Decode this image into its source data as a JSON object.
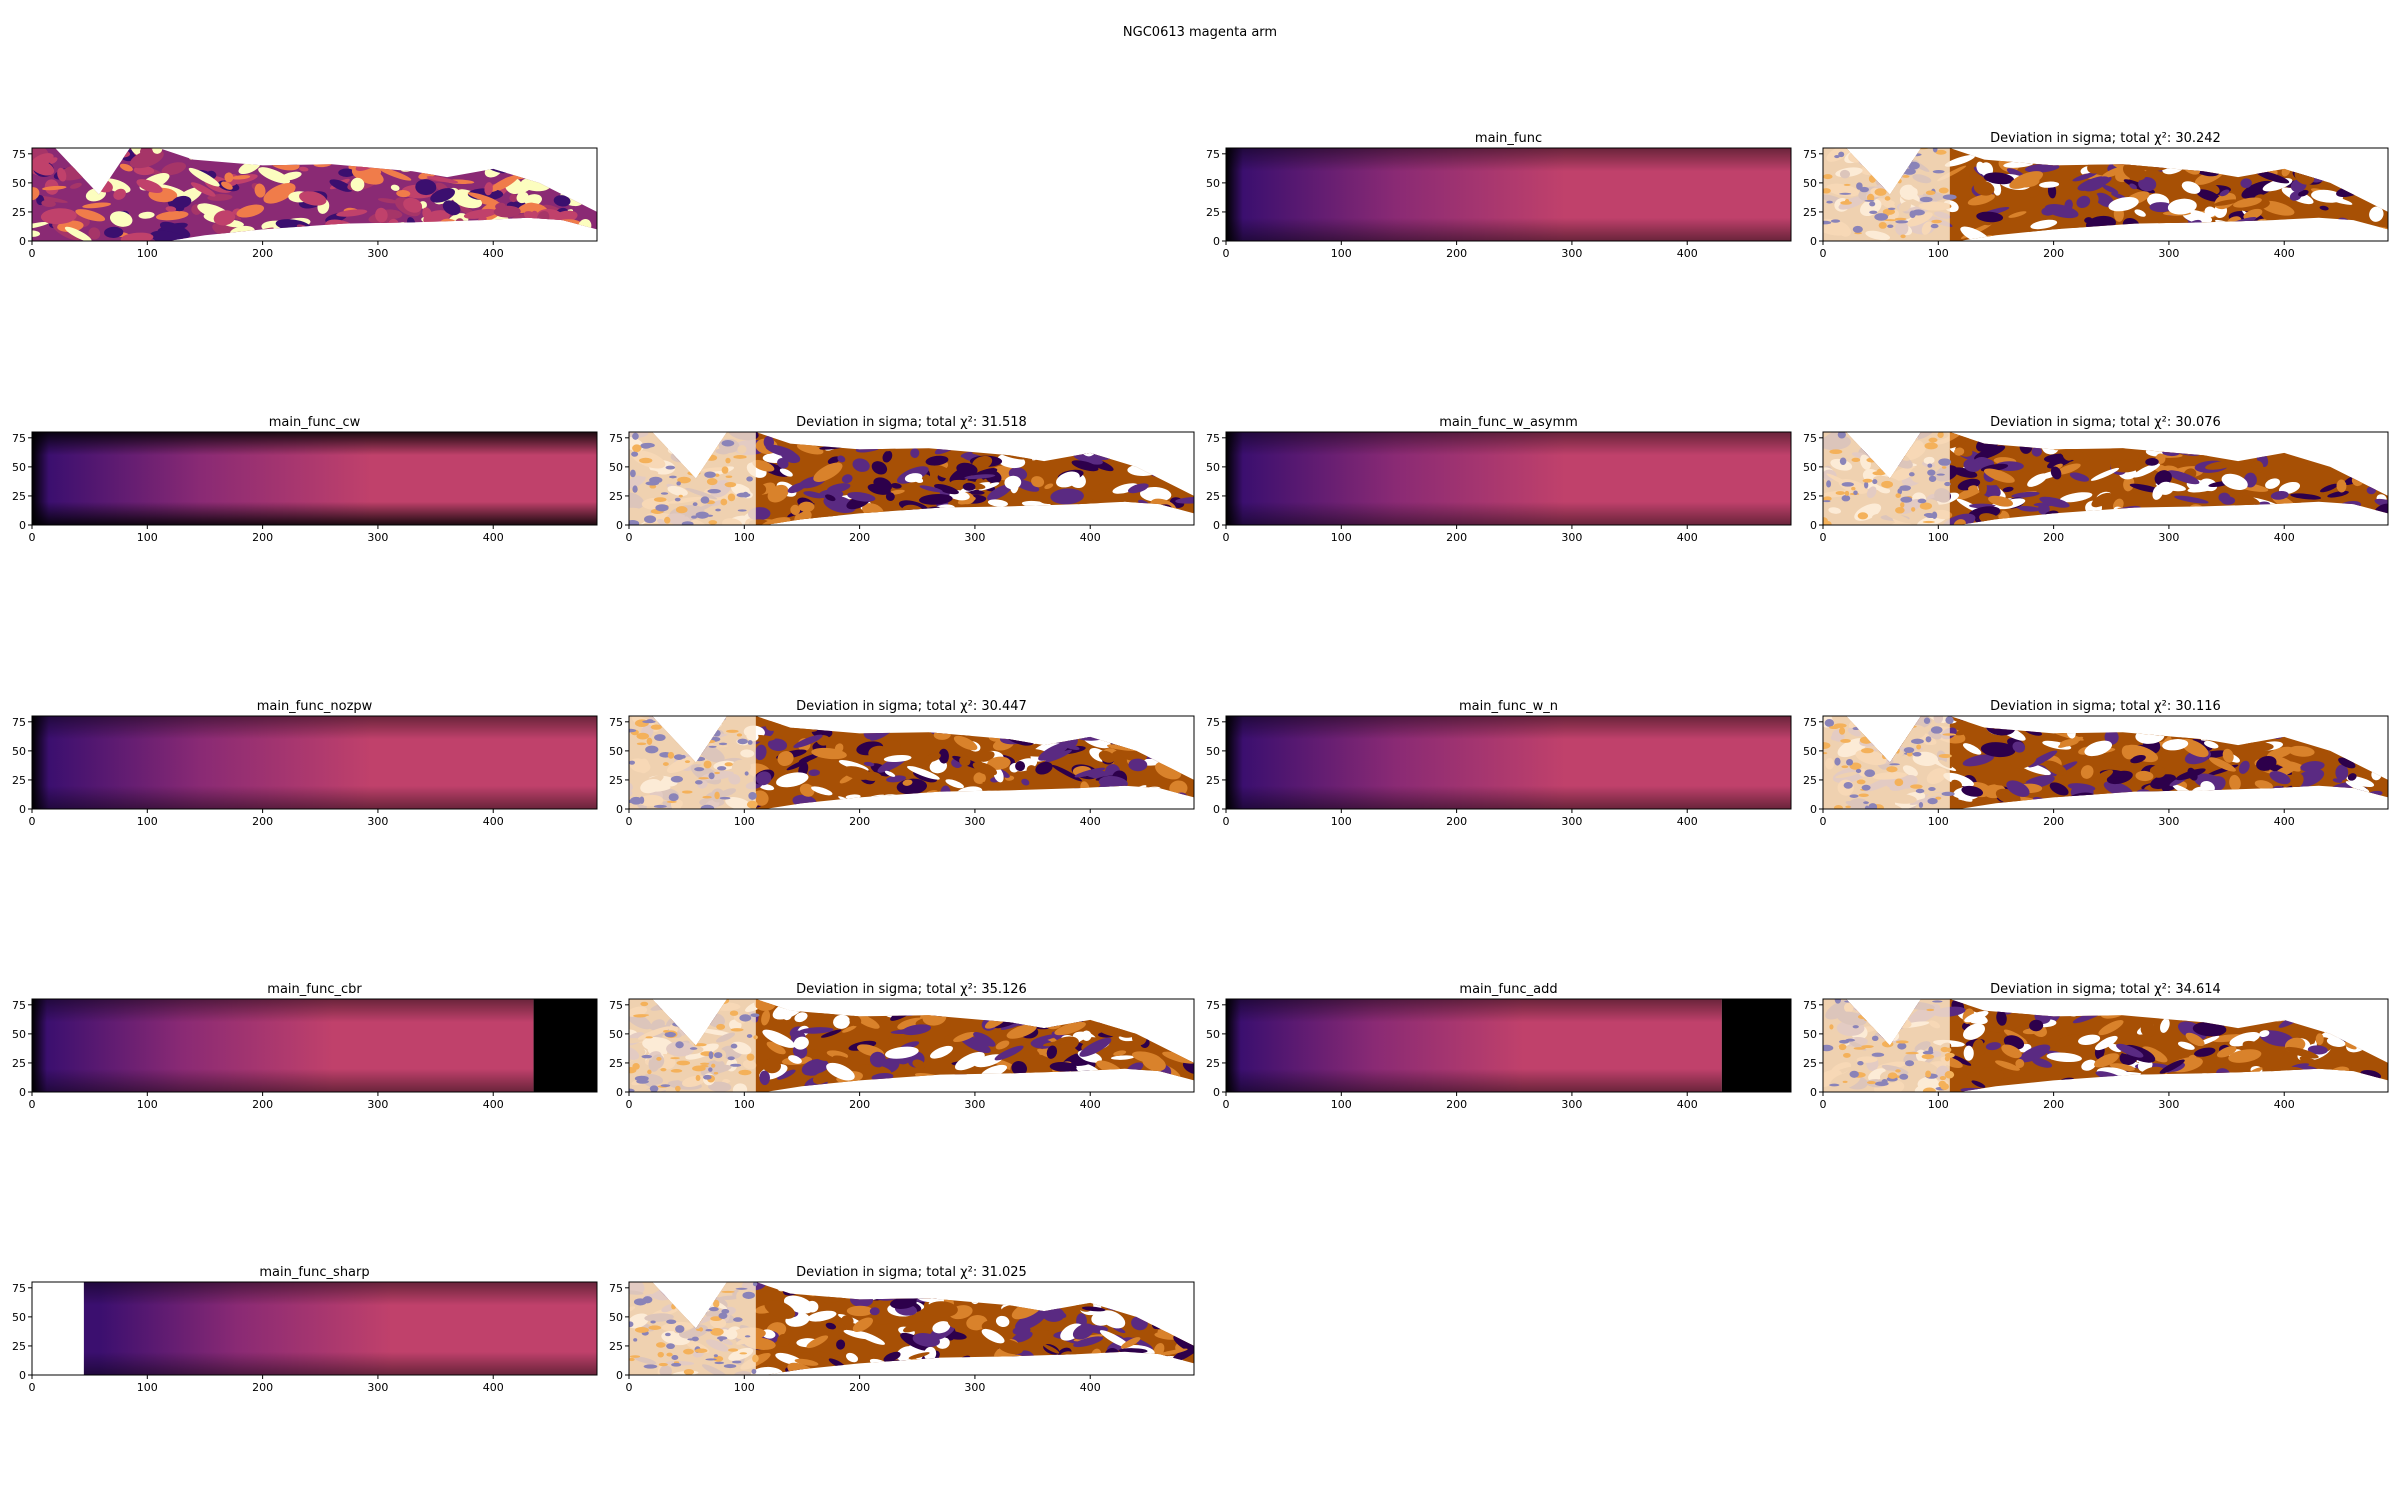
{
  "figure": {
    "title": "NGC0613 magenta arm"
  },
  "axes_common": {
    "xticks": [
      0,
      100,
      200,
      300,
      400
    ],
    "yticks": [
      0,
      25,
      50,
      75
    ],
    "xlim": [
      0,
      490
    ],
    "ylim": [
      0,
      80
    ]
  },
  "colors": {
    "model_low": "#000000",
    "model_mid": "#3b0f6f",
    "model_high": "#c0416b",
    "dev_purple": "#2d004b",
    "dev_orange": "#a75005",
    "dev_light_orange": "#f4b15a",
    "frame": "#000000"
  },
  "chart_data": [
    {
      "type": "heatmap",
      "title": "",
      "kind": "data",
      "position": "row1-col1"
    },
    {
      "type": "heatmap",
      "title": "main_func",
      "kind": "model",
      "position": "row1-col3",
      "left_dark": 0.25,
      "right_mask_from": null
    },
    {
      "type": "heatmap",
      "title": "Deviation in sigma; total χ²: 30.242",
      "kind": "deviation",
      "position": "row1-col4",
      "chi2": 30.242
    },
    {
      "type": "heatmap",
      "title": "main_func_cw",
      "kind": "model",
      "position": "row2-col1",
      "edge_dark": true
    },
    {
      "type": "heatmap",
      "title": "Deviation in sigma; total χ²: 31.518",
      "kind": "deviation",
      "position": "row2-col2",
      "chi2": 31.518
    },
    {
      "type": "heatmap",
      "title": "main_func_w_asymm",
      "kind": "model",
      "position": "row2-col3"
    },
    {
      "type": "heatmap",
      "title": "Deviation in sigma; total χ²: 30.076",
      "kind": "deviation",
      "position": "row2-col4",
      "chi2": 30.076
    },
    {
      "type": "heatmap",
      "title": "main_func_nozpw",
      "kind": "model",
      "position": "row3-col1"
    },
    {
      "type": "heatmap",
      "title": "Deviation in sigma; total χ²: 30.447",
      "kind": "deviation",
      "position": "row3-col2",
      "chi2": 30.447
    },
    {
      "type": "heatmap",
      "title": "main_func_w_n",
      "kind": "model",
      "position": "row3-col3"
    },
    {
      "type": "heatmap",
      "title": "Deviation in sigma; total χ²: 30.116",
      "kind": "deviation",
      "position": "row3-col4",
      "chi2": 30.116
    },
    {
      "type": "heatmap",
      "title": "main_func_cbr",
      "kind": "model",
      "position": "row4-col1",
      "dark_from_x": 435
    },
    {
      "type": "heatmap",
      "title": "Deviation in sigma; total χ²: 35.126",
      "kind": "deviation",
      "position": "row4-col2",
      "chi2": 35.126
    },
    {
      "type": "heatmap",
      "title": "main_func_add",
      "kind": "model",
      "position": "row4-col3",
      "dark_from_x": 430
    },
    {
      "type": "heatmap",
      "title": "Deviation in sigma; total χ²: 34.614",
      "kind": "deviation",
      "position": "row4-col4",
      "chi2": 34.614
    },
    {
      "type": "heatmap",
      "title": "main_func_sharp",
      "kind": "model",
      "position": "row5-col1",
      "blank_until_x": 45
    },
    {
      "type": "heatmap",
      "title": "Deviation in sigma; total χ²: 31.025",
      "kind": "deviation",
      "position": "row5-col2",
      "chi2": 31.025
    }
  ]
}
